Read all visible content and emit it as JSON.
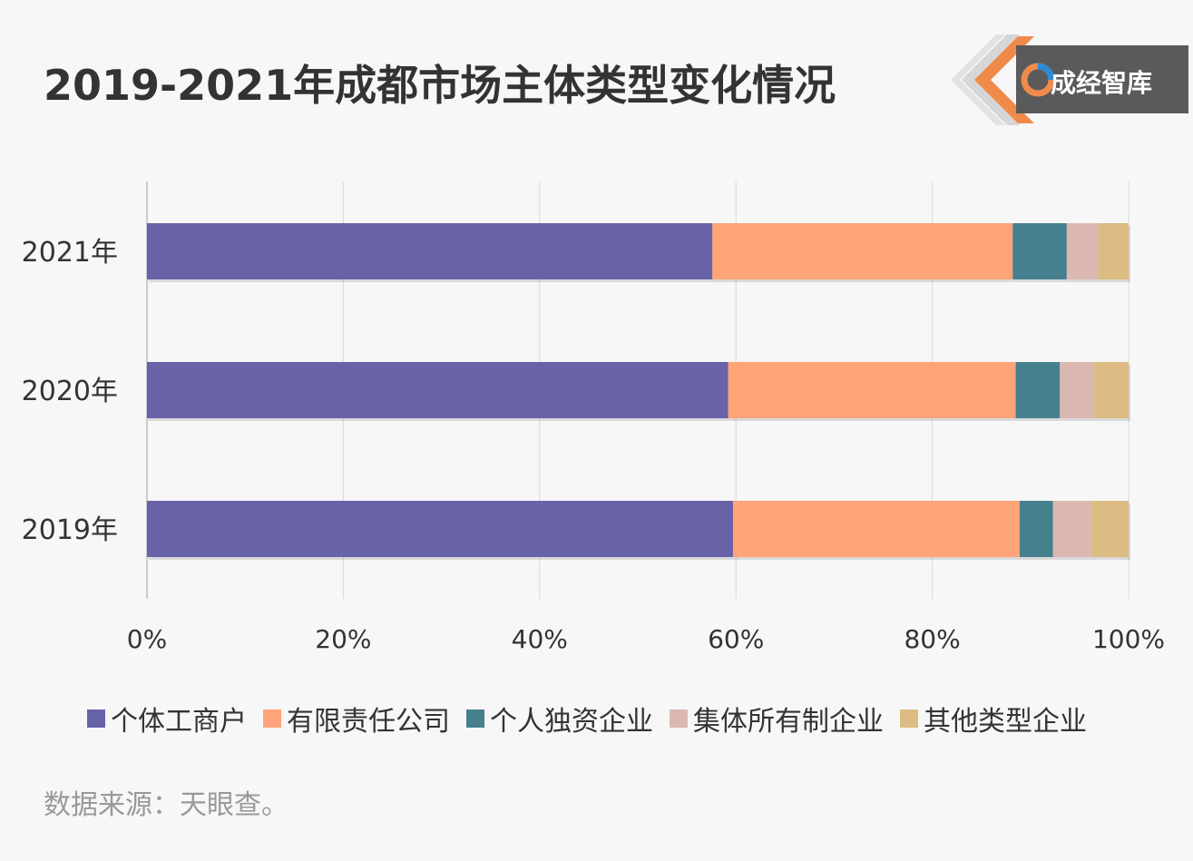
{
  "title": "2019-2021年成都市场主体类型变化情况",
  "logo": {
    "text": "成经智库"
  },
  "source": "数据来源：天眼查。",
  "chart_data": {
    "type": "bar",
    "orientation": "horizontal",
    "stacked": "percent",
    "categories": [
      "2021年",
      "2020年",
      "2019年"
    ],
    "series": [
      {
        "name": "个体工商户",
        "color": "#6863a8",
        "values": [
          57.6,
          59.2,
          59.7
        ]
      },
      {
        "name": "有限责任公司",
        "color": "#ffa378",
        "values": [
          30.6,
          29.3,
          29.2
        ]
      },
      {
        "name": "个人独资企业",
        "color": "#46808f",
        "values": [
          5.5,
          4.5,
          3.4
        ]
      },
      {
        "name": "集体所有制企业",
        "color": "#dbb8b1",
        "values": [
          3.2,
          3.5,
          3.9
        ]
      },
      {
        "name": "其他类型企业",
        "color": "#dcbc82",
        "values": [
          3.1,
          3.5,
          3.8
        ]
      }
    ],
    "xaxis": {
      "ticks": [
        "0%",
        "20%",
        "40%",
        "60%",
        "80%",
        "100%"
      ],
      "range": [
        0,
        100
      ]
    },
    "grid": true,
    "legend": "bottom"
  }
}
